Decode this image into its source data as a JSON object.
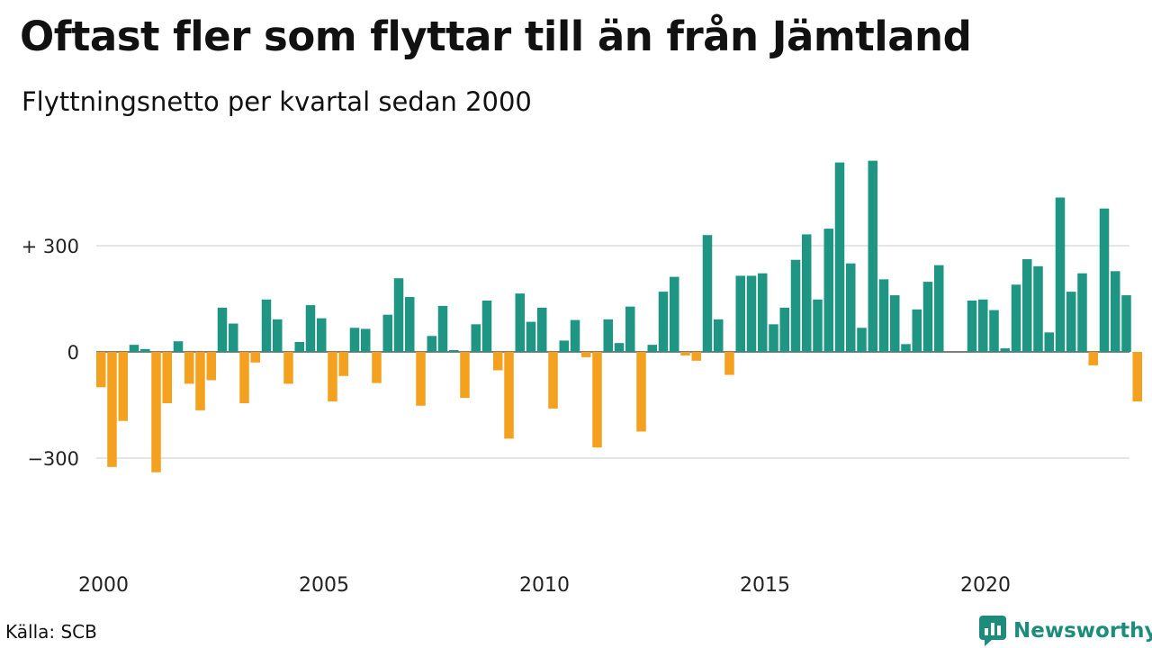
{
  "title": "Oftast fler som flyttar till än från Jämtland",
  "subtitle": "Flyttningsnetto per kvartal sedan 2000",
  "source": "Källa: SCB",
  "brand": {
    "name": "Newsworthy",
    "logo_icon": "newsworthy-chart-logo-icon",
    "color": "#1e8c7b"
  },
  "chart_data": {
    "type": "bar",
    "x_ticks": [
      "2000",
      "2005",
      "2010",
      "2015",
      "2020"
    ],
    "y_ticks": [
      {
        "value": 300,
        "label": "+ 300"
      },
      {
        "value": 0,
        "label": "0"
      },
      {
        "value": -300,
        "label": "−300"
      }
    ],
    "ylim": [
      -560,
      560
    ],
    "first_period": "2000 Q1",
    "positive_color": "#1e9683",
    "negative_color": "#f4a11f",
    "grid": true,
    "values": [
      -100,
      -325,
      -195,
      20,
      8,
      -340,
      -145,
      30,
      -90,
      -165,
      -80,
      125,
      80,
      -145,
      -30,
      148,
      92,
      -90,
      28,
      132,
      95,
      -140,
      -68,
      68,
      65,
      -88,
      105,
      208,
      155,
      -152,
      45,
      130,
      5,
      -130,
      78,
      145,
      -52,
      -245,
      165,
      85,
      125,
      -160,
      32,
      90,
      -15,
      -270,
      92,
      25,
      128,
      -225,
      20,
      170,
      212,
      -10,
      -25,
      330,
      92,
      -65,
      215,
      215,
      222,
      78,
      125,
      260,
      332,
      148,
      348,
      535,
      250,
      68,
      540,
      205,
      160,
      22,
      120,
      198,
      245,
      0,
      0,
      145,
      148,
      118,
      10,
      190,
      262,
      242,
      55,
      436,
      170,
      222,
      -38,
      405,
      228,
      160,
      -140
    ]
  }
}
